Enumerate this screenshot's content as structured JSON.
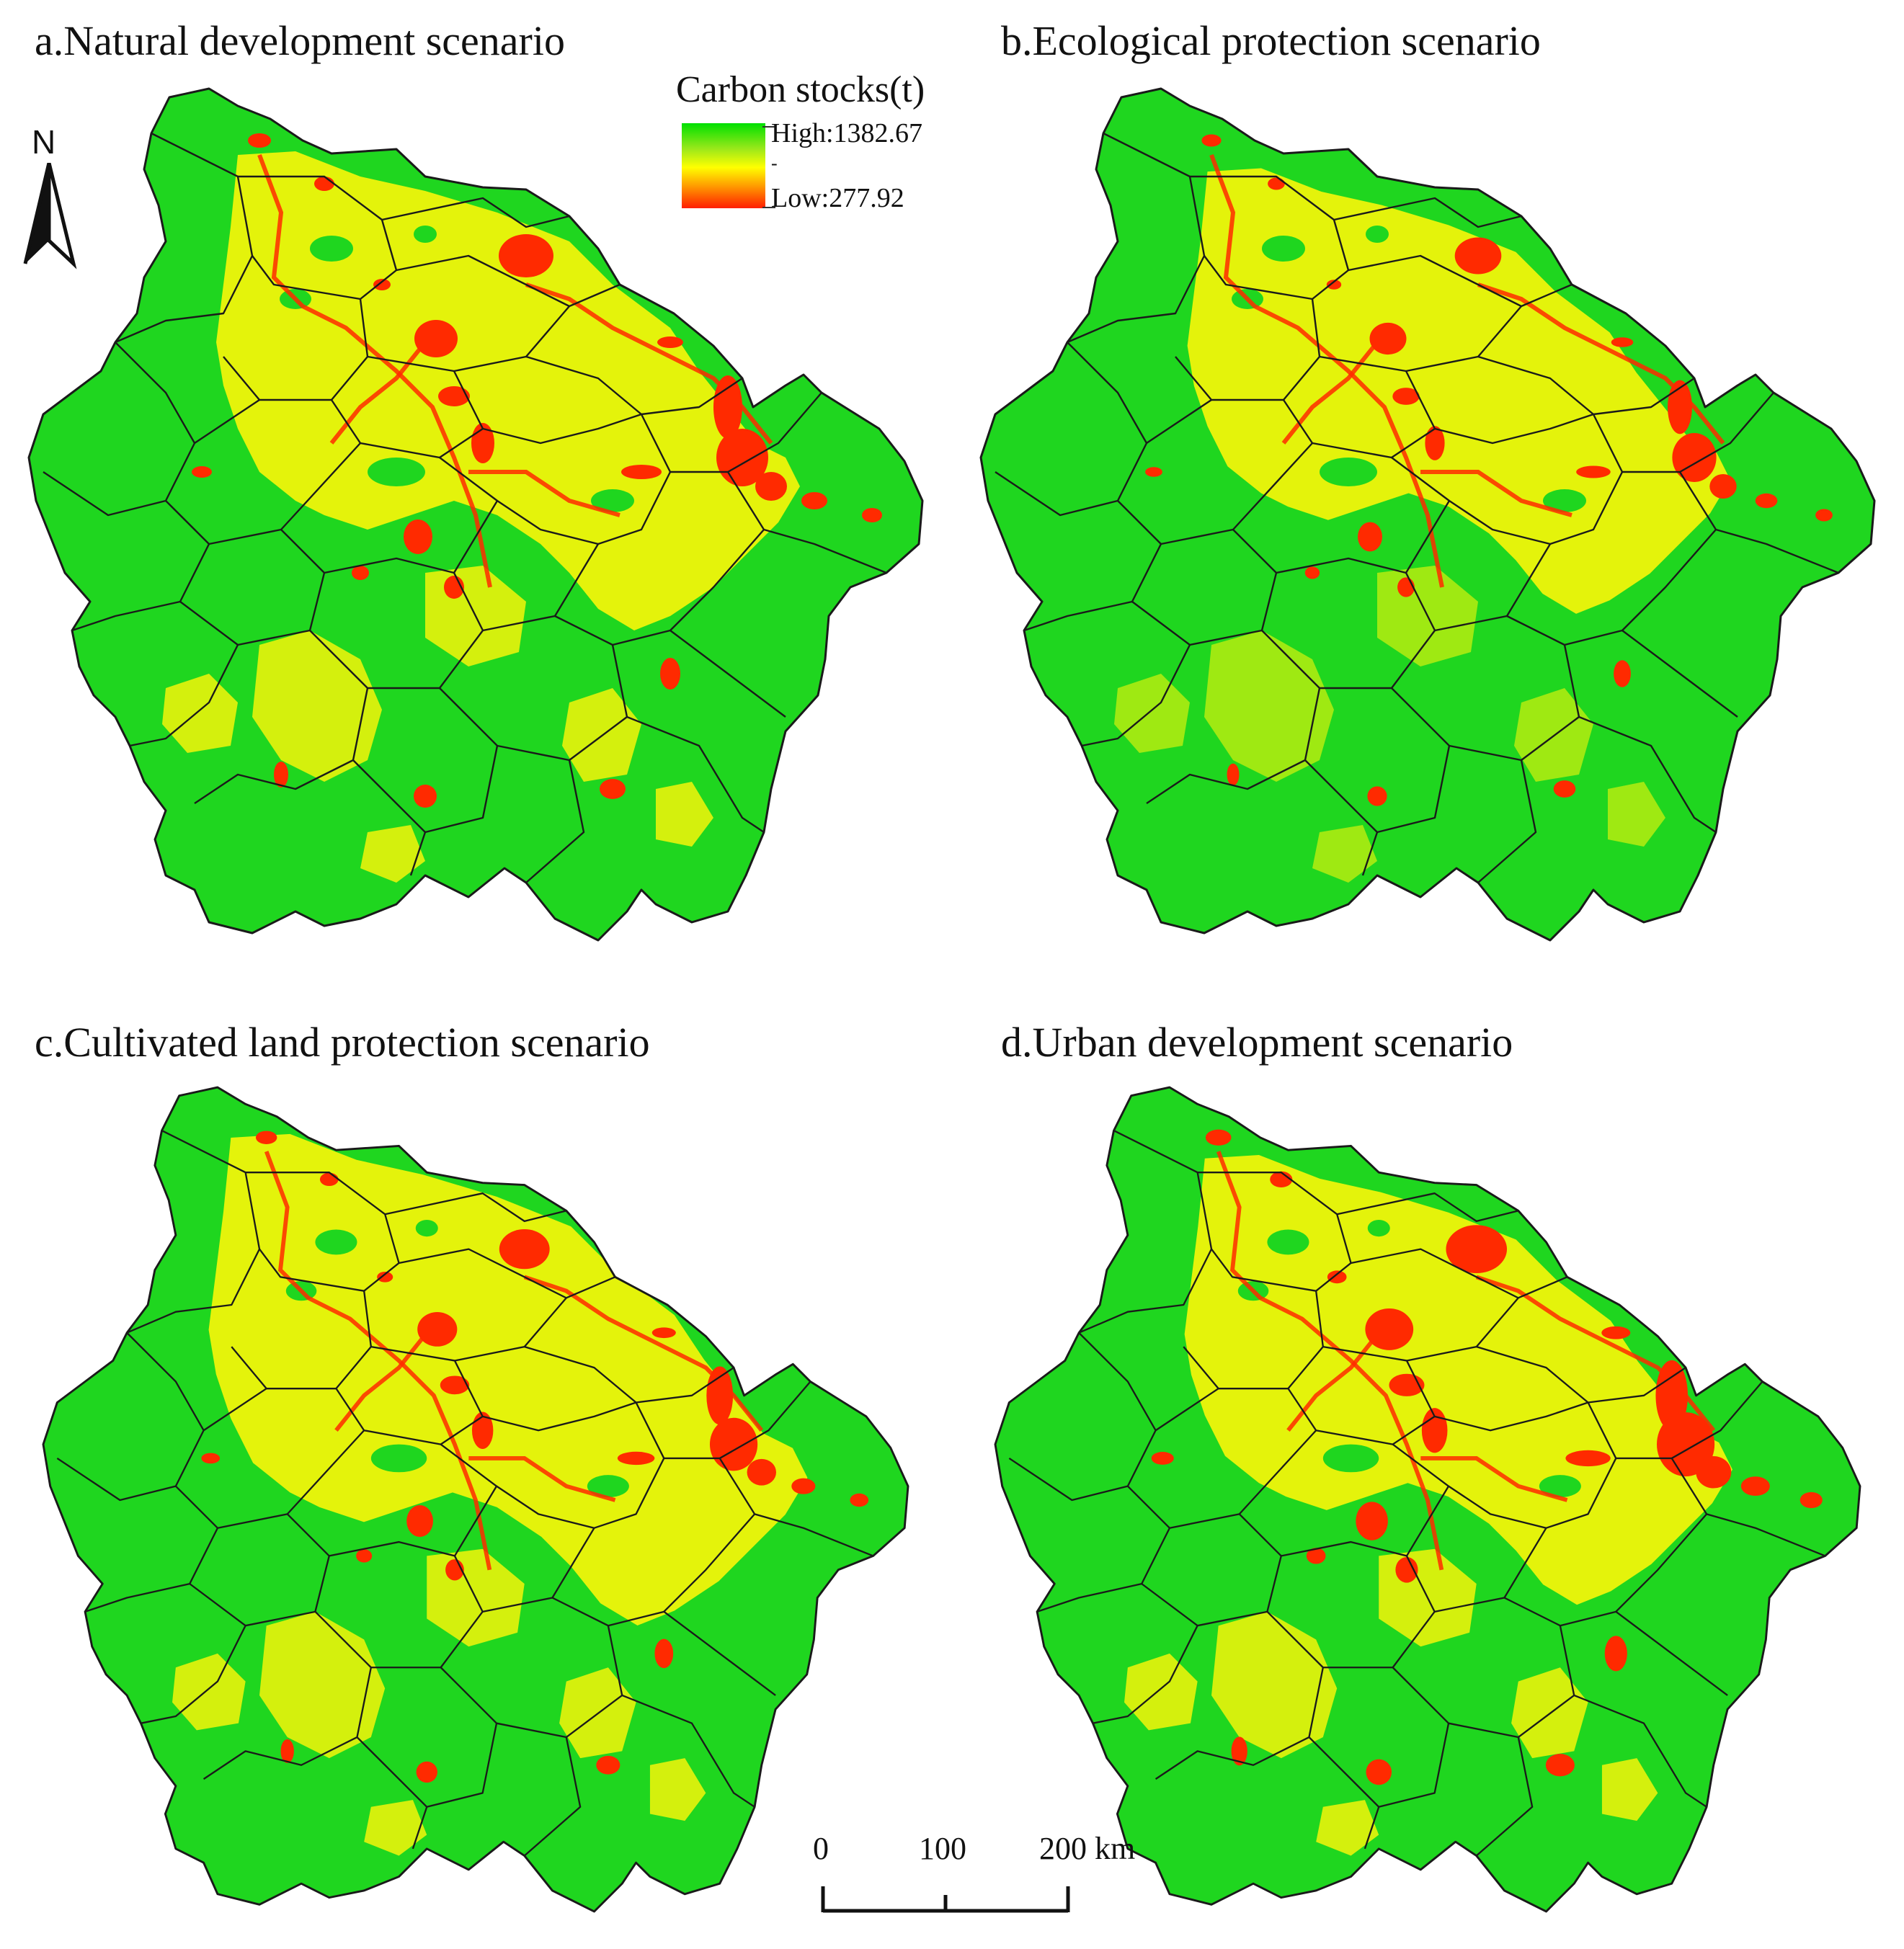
{
  "legend": {
    "title": "Carbon stocks(t)",
    "high_label": "High:1382.67",
    "low_label": "Low:277.92",
    "mid_mark": "-",
    "colors": [
      "#00e000",
      "#9ae81a",
      "#ffff00",
      "#ff9600",
      "#ff1e00"
    ]
  },
  "north_arrow": {
    "letter": "N"
  },
  "scale_bar": {
    "labels": [
      "0",
      "100",
      "200 km"
    ]
  },
  "panels": [
    {
      "id": "a",
      "title": "a.Natural development scenario"
    },
    {
      "id": "b",
      "title": "b.Ecological protection scenario"
    },
    {
      "id": "c",
      "title": "c.Cultivated land protection scenario"
    },
    {
      "id": "d",
      "title": "d.Urban development scenario"
    }
  ],
  "map_colors": {
    "high": "#1fd61f",
    "mid": "#f5f50a",
    "low": "#ff2a00",
    "border": "#1a1a1a",
    "background": "#ffffff"
  }
}
